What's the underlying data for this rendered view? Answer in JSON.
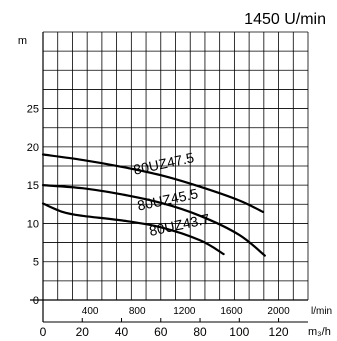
{
  "chart_data": {
    "type": "line",
    "title": "1450 U/min",
    "ylabel": "m",
    "xlabel_top": "l/min",
    "xlabel_bottom": "m₃/h",
    "ylim": [
      0,
      35
    ],
    "xlim_lpm": [
      0,
      2250
    ],
    "xlim_m3h": [
      0,
      135
    ],
    "grid": true,
    "y_ticks": [
      "0",
      "5",
      "10",
      "15",
      "20",
      "25"
    ],
    "x_ticks_lpm": [
      "400",
      "800",
      "1200",
      "1600",
      "2000"
    ],
    "x_ticks_m3h": [
      "0",
      "20",
      "40",
      "60",
      "80",
      "100",
      "120"
    ],
    "series": [
      {
        "name": "80UZ47.5",
        "x_m3h": [
          0,
          20,
          40,
          60,
          80,
          100,
          112
        ],
        "y": [
          19.0,
          18.3,
          17.4,
          16.3,
          14.8,
          13.0,
          11.5
        ]
      },
      {
        "name": "80UZ45.5",
        "x_m3h": [
          0,
          20,
          40,
          60,
          80,
          100,
          113
        ],
        "y": [
          15.0,
          14.6,
          13.8,
          12.7,
          11.0,
          8.5,
          5.8
        ]
      },
      {
        "name": "80UZ43.7",
        "x_m3h": [
          0,
          10,
          20,
          40,
          60,
          80,
          92
        ],
        "y": [
          12.6,
          11.5,
          11.0,
          10.4,
          9.5,
          7.8,
          6.0
        ]
      }
    ]
  }
}
